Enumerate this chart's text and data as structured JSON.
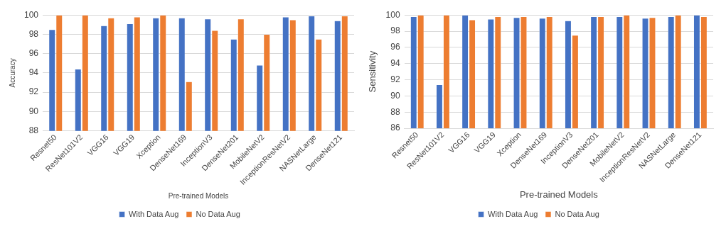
{
  "chart_data": [
    {
      "type": "bar",
      "xlabel": "Pre-trained Models",
      "ylabel": "Accuracy",
      "categories": [
        "Resnet50",
        "ResNet101V2",
        "VGG16",
        "VGG19",
        "Xception",
        "DenseNet169",
        "InceptionV3",
        "DenseNet201",
        "MobileNetV2",
        "InceptionResNetV2",
        "NASNetLarge",
        "DenseNet121"
      ],
      "series": [
        {
          "name": "With Data Aug",
          "color": "#4472c4",
          "values": [
            98.5,
            94.4,
            98.9,
            99.1,
            99.7,
            99.7,
            99.6,
            97.5,
            94.8,
            99.8,
            99.9,
            99.4
          ]
        },
        {
          "name": "No Data Aug",
          "color": "#ed7d31",
          "values": [
            100,
            100,
            99.7,
            99.8,
            100,
            93.1,
            98.4,
            99.6,
            98.0,
            99.5,
            97.5,
            99.9
          ]
        }
      ],
      "ylim": [
        88,
        100
      ],
      "yticks": [
        88,
        90,
        92,
        94,
        96,
        98,
        100
      ],
      "grid": "y",
      "legend": "bottom"
    },
    {
      "type": "bar",
      "xlabel": "Pre-trained Models",
      "ylabel": "Sensitivity",
      "categories": [
        "Resnet50",
        "ResNet101V2",
        "VGG16",
        "VGG19",
        "Xception",
        "DenseNet169",
        "InceptionV3",
        "DenseNet201",
        "MobileNetV2",
        "InceptionResNetV2",
        "NASNetLarge",
        "DenseNet121"
      ],
      "series": [
        {
          "name": "With Data Aug",
          "color": "#4472c4",
          "values": [
            99.8,
            91.4,
            100,
            99.5,
            99.7,
            99.6,
            99.3,
            99.8,
            99.8,
            99.6,
            99.8,
            100
          ]
        },
        {
          "name": "No Data Aug",
          "color": "#ed7d31",
          "values": [
            100,
            100,
            99.4,
            99.8,
            99.8,
            99.8,
            97.5,
            99.8,
            100,
            99.7,
            100,
            99.8
          ]
        }
      ],
      "ylim": [
        86,
        100
      ],
      "yticks": [
        86,
        88,
        90,
        92,
        94,
        96,
        98,
        100
      ],
      "grid": "y",
      "legend": "bottom"
    }
  ]
}
